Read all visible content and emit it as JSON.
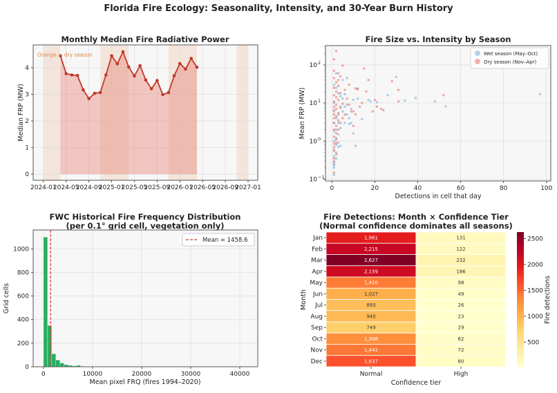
{
  "suptitle": "Florida Fire Ecology: Seasonality, Intensity, and 30-Year Burn History",
  "chart_data": [
    {
      "type": "line",
      "title": "Monthly Median Fire Radiative Power",
      "xlabel": "",
      "ylabel": "Median FRP (MW)",
      "annotation": "Orange = dry season",
      "x": [
        "2024-04",
        "2024-05",
        "2024-06",
        "2024-07",
        "2024-08",
        "2024-09",
        "2024-10",
        "2024-11",
        "2024-12",
        "2025-01",
        "2025-02",
        "2025-03",
        "2025-04",
        "2025-05",
        "2025-06",
        "2025-07",
        "2025-08",
        "2025-09",
        "2025-10",
        "2025-11",
        "2025-12",
        "2026-01",
        "2026-02",
        "2026-03",
        "2026-04"
      ],
      "values": [
        4.45,
        3.78,
        3.73,
        3.71,
        3.17,
        2.84,
        3.04,
        3.07,
        3.73,
        4.45,
        4.15,
        4.6,
        4.03,
        3.69,
        4.08,
        3.54,
        3.21,
        3.52,
        2.99,
        3.07,
        3.7,
        4.16,
        3.95,
        4.35,
        4.02
      ],
      "dry_season_bands": [
        [
          "2024-01",
          "2024-04"
        ],
        [
          "2024-11",
          "2025-04"
        ],
        [
          "2025-11",
          "2026-04"
        ],
        [
          "2026-11",
          "2027-01"
        ]
      ],
      "xticks": [
        "2024-01",
        "2024-05",
        "2024-09",
        "2025-01",
        "2025-05",
        "2025-09",
        "2026-01",
        "2026-05",
        "2026-09",
        "2027-01"
      ],
      "yticks": [
        0,
        1,
        2,
        3,
        4
      ],
      "ylim": [
        -0.23,
        4.86
      ],
      "grid": true,
      "colors": {
        "line": "#c0392b",
        "fill": "#e8877c",
        "band": "#f0d3c0"
      }
    },
    {
      "type": "scatter",
      "title": "Fire Size vs. Intensity by Season",
      "xlabel": "Detections in cell that day",
      "ylabel": "Mean FRP (MW)",
      "yscale": "log",
      "xlim": [
        -3,
        102
      ],
      "ylim": [
        0.09,
        320
      ],
      "xticks": [
        0,
        20,
        40,
        60,
        80,
        100
      ],
      "yticks": [
        {
          "v": 0.1,
          "base": "10",
          "exp": "−1"
        },
        {
          "v": 1,
          "base": "10",
          "exp": "0"
        },
        {
          "v": 10,
          "base": "10",
          "exp": "1"
        },
        {
          "v": 100,
          "base": "10",
          "exp": "2"
        }
      ],
      "legend_position": "top-right",
      "grid": true,
      "series": [
        {
          "name": "Wet season (May–Oct)",
          "color": "#6fa8d6",
          "points": [
            [
              30,
              48
            ],
            [
              26,
              16
            ],
            [
              34,
              11.5
            ],
            [
              39,
              13.5
            ],
            [
              48,
              11
            ],
            [
              53,
              8.2
            ],
            [
              97,
              17
            ],
            [
              14,
              3.8
            ],
            [
              11,
              0.75
            ],
            [
              10,
              1.6
            ],
            [
              17,
              12
            ],
            [
              18,
              11
            ],
            [
              21,
              10.5
            ],
            [
              7,
              45
            ],
            [
              5,
              40
            ],
            [
              3,
              0.7
            ],
            [
              4,
              0.75
            ],
            [
              1,
              0.13
            ],
            [
              1,
              0.2
            ],
            [
              1,
              0.23
            ],
            [
              1,
              0.25
            ],
            [
              1,
              0.3
            ],
            [
              2,
              0.35
            ],
            [
              1,
              0.4
            ],
            [
              2,
              0.5
            ],
            [
              1,
              0.6
            ],
            [
              1,
              1
            ],
            [
              2,
              2
            ],
            [
              3,
              5
            ],
            [
              6,
              8
            ],
            [
              8,
              4
            ],
            [
              9,
              7
            ],
            [
              12,
              13
            ],
            [
              2,
              60
            ],
            [
              1,
              30
            ],
            [
              1,
              10
            ],
            [
              1,
              3
            ],
            [
              2,
              1.2
            ],
            [
              3,
              3
            ],
            [
              4,
              15
            ],
            [
              5,
              6
            ],
            [
              7,
              9
            ],
            [
              10,
              12
            ],
            [
              6,
              3
            ],
            [
              8,
              2.8
            ],
            [
              2,
              25
            ],
            [
              3,
              1.5
            ],
            [
              4,
              2.2
            ],
            [
              5,
              13
            ],
            [
              9,
              3
            ],
            [
              12,
              24
            ],
            [
              1,
              1.8
            ],
            [
              2,
              0.8
            ],
            [
              3,
              0.9
            ],
            [
              2,
              4
            ],
            [
              1,
              6
            ],
            [
              3,
              18
            ],
            [
              4,
              8
            ],
            [
              6,
              17
            ],
            [
              7,
              5
            ]
          ]
        },
        {
          "name": "Dry season (Nov–Apr)",
          "color": "#e8645a",
          "points": [
            [
              2,
              230
            ],
            [
              1,
              140
            ],
            [
              5,
              95
            ],
            [
              15,
              80
            ],
            [
              1,
              70
            ],
            [
              3,
              60
            ],
            [
              17,
              40
            ],
            [
              28,
              37
            ],
            [
              31,
              22
            ],
            [
              52,
              16
            ],
            [
              31,
              11
            ],
            [
              21,
              8
            ],
            [
              19,
              6
            ],
            [
              23,
              7
            ],
            [
              24,
              6.5
            ],
            [
              11,
              24
            ],
            [
              12,
              23
            ],
            [
              16,
              20
            ],
            [
              10,
              6
            ],
            [
              10,
              2.5
            ],
            [
              1,
              0.15
            ],
            [
              1,
              0.28
            ],
            [
              1,
              0.35
            ],
            [
              2,
              0.45
            ],
            [
              1,
              0.55
            ],
            [
              1,
              0.7
            ],
            [
              2,
              0.9
            ],
            [
              1,
              1.3
            ],
            [
              2,
              1.6
            ],
            [
              1,
              2
            ],
            [
              2,
              2.5
            ],
            [
              1,
              3
            ],
            [
              3,
              3.5
            ],
            [
              1,
              4
            ],
            [
              2,
              4.5
            ],
            [
              1,
              5
            ],
            [
              3,
              5.5
            ],
            [
              1,
              6.5
            ],
            [
              2,
              7
            ],
            [
              4,
              7.5
            ],
            [
              1,
              8
            ],
            [
              2,
              9
            ],
            [
              5,
              9.5
            ],
            [
              1,
              11
            ],
            [
              3,
              12
            ],
            [
              2,
              14
            ],
            [
              1,
              16
            ],
            [
              4,
              18
            ],
            [
              2,
              20
            ],
            [
              6,
              22
            ],
            [
              1,
              25
            ],
            [
              3,
              28
            ],
            [
              2,
              35
            ],
            [
              1,
              45
            ],
            [
              7,
              13
            ],
            [
              8,
              9
            ],
            [
              9,
              6
            ],
            [
              6,
              5
            ],
            [
              5,
              4
            ],
            [
              4,
              3
            ],
            [
              3,
              2
            ],
            [
              2,
              1.1
            ],
            [
              1,
              0.85
            ],
            [
              3,
              40
            ],
            [
              4,
              50
            ],
            [
              8,
              30
            ],
            [
              13,
              8
            ],
            [
              14,
              10
            ],
            [
              11,
              5
            ],
            [
              20,
              12
            ]
          ]
        }
      ]
    },
    {
      "type": "bar",
      "title": "FWC Historical Fire Frequency Distribution",
      "subtitle": "(per 0.1° grid cell, vegetation only)",
      "xlabel": "Mean pixel FRQ (fires 1994–2020)",
      "ylabel": "Grid cells",
      "bin_width": 840,
      "bin_start": 0,
      "values": [
        1100,
        350,
        110,
        58,
        32,
        18,
        12,
        8,
        12,
        5,
        3,
        2,
        1,
        1
      ],
      "mean_line": {
        "value": 1458.6,
        "label": "Mean = 1458.6",
        "color": "#d33a2f"
      },
      "xlim": [
        -2100,
        43660
      ],
      "ylim": [
        0,
        1160
      ],
      "xticks": [
        0,
        10000,
        20000,
        30000,
        40000
      ],
      "yticks": [
        0,
        200,
        400,
        600,
        800,
        1000
      ],
      "legend_position": "top-right",
      "grid": true,
      "colors": {
        "bar": "#27ae60"
      }
    },
    {
      "type": "heatmap",
      "title": "Fire Detections: Month × Confidence Tier",
      "subtitle": "(Normal confidence dominates all seasons)",
      "xlabel": "Confidence tier",
      "ylabel": "Month",
      "colorbar_label": "Fire detections",
      "colormap": "YlOrRd",
      "vmin": 23,
      "vmax": 2627,
      "colorbar_ticks": [
        500,
        1000,
        1500,
        2000,
        2500
      ],
      "columns": [
        "Normal",
        "High"
      ],
      "rows": [
        "Jan",
        "Feb",
        "Mar",
        "Apr",
        "May",
        "Jun",
        "Jul",
        "Aug",
        "Sep",
        "Oct",
        "Nov",
        "Dec"
      ],
      "values": [
        [
          1961,
          131
        ],
        [
          2215,
          122
        ],
        [
          2627,
          232
        ],
        [
          2159,
          186
        ],
        [
          1410,
          98
        ],
        [
          1027,
          49
        ],
        [
          893,
          26
        ],
        [
          940,
          23
        ],
        [
          749,
          29
        ],
        [
          1308,
          62
        ],
        [
          1441,
          72
        ],
        [
          1637,
          80
        ]
      ],
      "labels": [
        [
          "1,961",
          "131"
        ],
        [
          "2,215",
          "122"
        ],
        [
          "2,627",
          "232"
        ],
        [
          "2,159",
          "186"
        ],
        [
          "1,410",
          "98"
        ],
        [
          "1,027",
          "49"
        ],
        [
          "893",
          "26"
        ],
        [
          "940",
          "23"
        ],
        [
          "749",
          "29"
        ],
        [
          "1,308",
          "62"
        ],
        [
          "1,441",
          "72"
        ],
        [
          "1,637",
          "80"
        ]
      ]
    }
  ]
}
